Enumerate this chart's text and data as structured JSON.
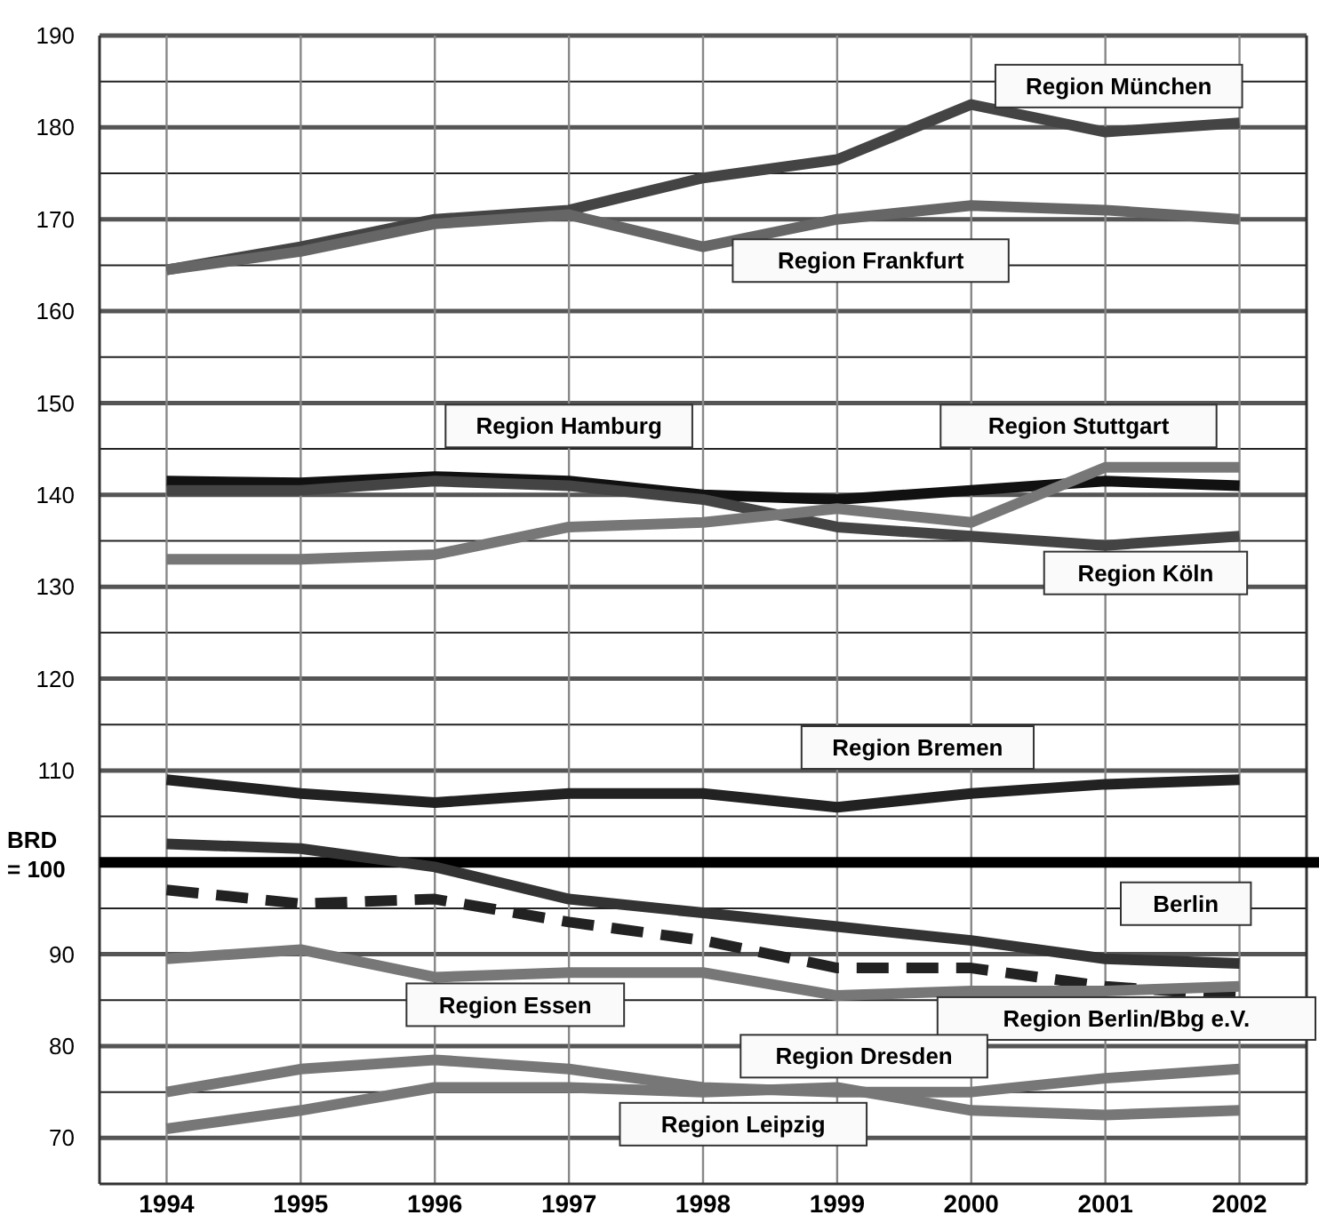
{
  "chart_data": {
    "type": "line",
    "categories": [
      "1994",
      "1995",
      "1996",
      "1997",
      "1998",
      "1999",
      "2000",
      "2001",
      "2002"
    ],
    "ylim": [
      65,
      190
    ],
    "yticks": [
      70,
      {
        "value": 75,
        "label": null
      },
      80,
      {
        "value": 85,
        "label": null
      },
      90,
      {
        "value": 95,
        "label": null
      },
      {
        "value": 105,
        "label": null
      },
      110,
      {
        "value": 115,
        "label": null
      },
      120,
      {
        "value": 125,
        "label": null
      },
      130,
      {
        "value": 135,
        "label": null
      },
      140,
      {
        "value": 145,
        "label": null
      },
      150,
      {
        "value": 155,
        "label": null
      },
      160,
      {
        "value": 165,
        "label": null
      },
      170,
      {
        "value": 175,
        "label": null
      },
      180,
      {
        "value": 185,
        "label": null
      },
      190
    ],
    "grid": true,
    "ref_lines": [
      {
        "axis": "y",
        "value": 100,
        "label": "BRD = 100",
        "color": "#000000"
      }
    ],
    "series": [
      {
        "name": "Region München",
        "color": "#444444",
        "values": [
          164.5,
          167,
          170,
          171,
          174.5,
          176.5,
          182.5,
          179.5,
          180.5
        ]
      },
      {
        "name": "Region Frankfurt",
        "color": "#666666",
        "values": [
          164.5,
          166.5,
          169.5,
          170.5,
          167,
          170,
          171.5,
          171,
          170
        ]
      },
      {
        "name": "Region Hamburg",
        "color": "#111111",
        "values": [
          141.5,
          141.3,
          142,
          141.5,
          140,
          139.5,
          140.5,
          141.5,
          141
        ]
      },
      {
        "name": "Region Köln",
        "color": "#444444",
        "values": [
          140.5,
          140.5,
          141.5,
          141,
          139.5,
          136.5,
          135.5,
          134.5,
          135.5
        ]
      },
      {
        "name": "Region Stuttgart",
        "color": "#777777",
        "values": [
          133,
          133,
          133.5,
          136.5,
          137,
          138.5,
          137,
          143,
          143
        ]
      },
      {
        "name": "Region Bremen",
        "color": "#222222",
        "values": [
          109,
          107.5,
          106.5,
          107.5,
          107.5,
          106,
          107.5,
          108.5,
          109
        ]
      },
      {
        "name": "Berlin",
        "color": "#333333",
        "values": [
          102,
          101.5,
          99.5,
          96,
          94.5,
          93,
          91.5,
          89.5,
          89
        ]
      },
      {
        "name": "Region Berlin/Bbg  e.V.",
        "color": "#222222",
        "line_style": "dashed",
        "values": [
          97,
          95.5,
          96,
          93.5,
          91.5,
          88.5,
          88.5,
          86.5,
          85.5
        ]
      },
      {
        "name": "Region Essen",
        "color": "#777777",
        "values": [
          89.5,
          90.5,
          87.5,
          88,
          88,
          85.5,
          86,
          86,
          86.5
        ]
      },
      {
        "name": "Region Dresden",
        "color": "#777777",
        "values": [
          75,
          77.5,
          78.5,
          77.5,
          75.5,
          75,
          75,
          76.5,
          77.5
        ]
      },
      {
        "name": "Region Leipzig",
        "color": "#777777",
        "values": [
          71,
          73,
          75.5,
          75.5,
          75,
          75.5,
          73,
          72.5,
          73
        ]
      }
    ]
  }
}
